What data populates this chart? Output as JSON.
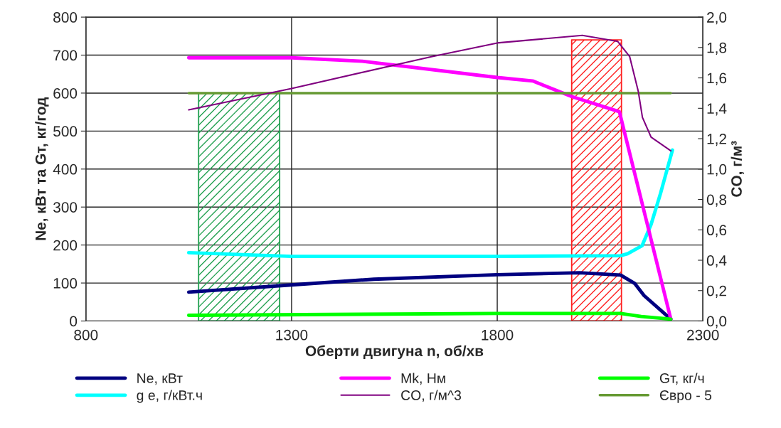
{
  "chart_data": {
    "type": "line",
    "xlabel": "Оберти двигуна n, об/хв",
    "ylabel": "Ne, кВт та Gт, кг/год",
    "y2label": "CO, г/м³",
    "xlim": [
      800,
      2300
    ],
    "xticks": [
      800,
      1300,
      1800,
      2300
    ],
    "ylim": [
      0,
      800
    ],
    "yticks": [
      0,
      100,
      200,
      300,
      400,
      500,
      600,
      700,
      800
    ],
    "y2lim": [
      0,
      2.0
    ],
    "y2ticks": [
      {
        "value": 0,
        "label": "0,0"
      },
      {
        "value": 0.2,
        "label": "0,2"
      },
      {
        "value": 0.4,
        "label": "0,4"
      },
      {
        "value": 0.6,
        "label": "0,6"
      },
      {
        "value": 0.8,
        "label": "0,8"
      },
      {
        "value": 1.0,
        "label": "1,0"
      },
      {
        "value": 1.2,
        "label": "1,2"
      },
      {
        "value": 1.4,
        "label": "1,4"
      },
      {
        "value": 1.6,
        "label": "1,6"
      },
      {
        "value": 1.8,
        "label": "1,8"
      },
      {
        "value": 2.0,
        "label": "2,0"
      }
    ],
    "grid": true,
    "legend": "bottom",
    "marker": "none",
    "series": [
      {
        "name": "Ne, кВт",
        "color": "#000080",
        "x": [
          1050,
          1300,
          1500,
          1800,
          2000,
          2100,
          2134,
          2157,
          2222
        ],
        "values": [
          76,
          95,
          110,
          122,
          127,
          121,
          99,
          67,
          5
        ]
      },
      {
        "name": "g е, г/кВт.ч",
        "color": "#00ffff",
        "x": [
          1050,
          1300,
          1800,
          2100,
          2117,
          2152,
          2174,
          2197,
          2226
        ],
        "values": [
          180,
          170,
          170,
          172,
          177,
          198,
          254,
          336,
          450
        ]
      },
      {
        "name": "Mk, Нм",
        "color": "#ff00ff",
        "x": [
          1050,
          1300,
          1472,
          1800,
          1886,
          1981,
          2097,
          2222
        ],
        "values": [
          693,
          693,
          684,
          641,
          632,
          591,
          551,
          5
        ]
      },
      {
        "name": "CO, г/м^3",
        "color": "#800080",
        "axis": "y2",
        "x": [
          1050,
          1300,
          1640,
          1800,
          2007,
          2093,
          2122,
          2143,
          2153,
          2174,
          2222
        ],
        "values": [
          1.39,
          1.53,
          1.74,
          1.83,
          1.88,
          1.84,
          1.74,
          1.51,
          1.34,
          1.21,
          1.12
        ]
      },
      {
        "name": "Gт, кг/ч",
        "color": "#00ff00",
        "x": [
          1050,
          1800,
          2100,
          2150,
          2222
        ],
        "values": [
          15,
          20,
          20,
          12,
          5
        ]
      },
      {
        "name": "Євро - 5",
        "color": "#669933",
        "x": [
          1050,
          2222
        ],
        "values": [
          600,
          600
        ]
      },
      {
        "type": "area",
        "color": "#22a050",
        "x": [
          1074,
          1271
        ],
        "values": [
          600,
          600
        ]
      },
      {
        "type": "area",
        "color": "#ff2020",
        "x": [
          1981,
          2102
        ],
        "values": [
          740,
          740
        ]
      }
    ]
  }
}
